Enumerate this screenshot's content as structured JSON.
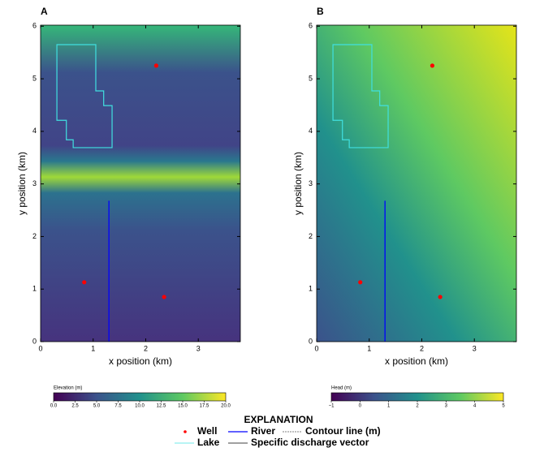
{
  "chart_data": [
    {
      "type": "map",
      "label": "A",
      "xlabel": "x position (km)",
      "ylabel": "y position (km)",
      "xlim": [
        0,
        3.8
      ],
      "ylim": [
        0,
        6.02
      ],
      "xticks": [
        0,
        1,
        2,
        3
      ],
      "yticks": [
        0,
        1,
        2,
        3,
        4,
        5,
        6
      ],
      "wells": {
        "x": [
          2.2,
          0.83,
          2.35
        ],
        "y": [
          5.25,
          1.13,
          0.85
        ],
        "color": "#ff0000"
      },
      "river": {
        "x": [
          1.3,
          1.3
        ],
        "y": [
          0,
          2.68
        ],
        "color": "#0000ff"
      },
      "lake": {
        "x": [
          0.31,
          1.05,
          1.05,
          1.2,
          1.2,
          1.36,
          1.36,
          0.62,
          0.62,
          0.49,
          0.49,
          0.31
        ],
        "y": [
          5.65,
          5.65,
          4.77,
          4.77,
          4.49,
          4.49,
          3.69,
          3.69,
          3.84,
          3.84,
          4.21,
          4.21
        ],
        "color": "#40e0e0"
      },
      "colorbar": {
        "label": "Elevation (m)",
        "lim": [
          0,
          20
        ],
        "ticks": [
          {
            "value": 0,
            "label": "0.0"
          },
          {
            "value": 2.5,
            "label": "2.5"
          },
          {
            "value": 5,
            "label": "5.0"
          },
          {
            "value": 7.5,
            "label": "7.5"
          },
          {
            "value": 10,
            "label": "10.0"
          },
          {
            "value": 12.5,
            "label": "12.5"
          },
          {
            "value": 15,
            "label": "15.0"
          },
          {
            "value": 17.5,
            "label": "17.5"
          },
          {
            "value": 20,
            "label": "20.0"
          }
        ],
        "colors": [
          "#440154",
          "#3b528b",
          "#21918c",
          "#5ec962",
          "#fde725"
        ]
      }
    },
    {
      "type": "map",
      "label": "B",
      "xlabel": "x position (km)",
      "ylabel": "y position (km)",
      "xlim": [
        0,
        3.8
      ],
      "ylim": [
        0,
        6.02
      ],
      "xticks": [
        0,
        1,
        2,
        3
      ],
      "yticks": [
        0,
        1,
        2,
        3,
        4,
        5,
        6
      ],
      "wells": {
        "x": [
          2.2,
          0.83,
          2.35
        ],
        "y": [
          5.25,
          1.13,
          0.85
        ],
        "color": "#ff0000"
      },
      "river": {
        "x": [
          1.3,
          1.3
        ],
        "y": [
          0,
          2.68
        ],
        "color": "#0000ff"
      },
      "lake": {
        "x": [
          0.31,
          1.05,
          1.05,
          1.2,
          1.2,
          1.36,
          1.36,
          0.62,
          0.62,
          0.49,
          0.49,
          0.31
        ],
        "y": [
          5.65,
          5.65,
          4.77,
          4.77,
          4.49,
          4.49,
          3.69,
          3.69,
          3.84,
          3.84,
          4.21,
          4.21
        ],
        "color": "#40e0e0"
      },
      "colorbar": {
        "label": "Head (m)",
        "lim": [
          -1,
          5
        ],
        "ticks": [
          {
            "value": -1,
            "label": "−1"
          },
          0,
          1,
          2,
          3,
          4,
          5
        ],
        "colors": [
          "#440154",
          "#3b528b",
          "#21918c",
          "#5ec962",
          "#fde725"
        ]
      }
    }
  ],
  "legend": {
    "title": "EXPLANATION",
    "entries": [
      {
        "name": "Well",
        "color": "#ff0000"
      },
      {
        "name": "River",
        "color": "#0000ff"
      },
      {
        "name": "Contour line (m)",
        "color": "#000000"
      },
      {
        "name": "Lake",
        "color": "#40e0e0"
      },
      {
        "name": "Specific discharge vector",
        "color": "#000000"
      }
    ]
  }
}
